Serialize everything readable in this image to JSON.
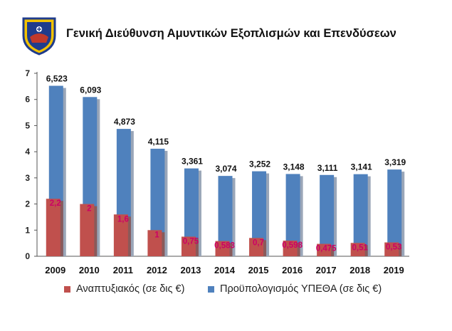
{
  "header": {
    "title": "Γενική Διεύθυνση Αμυντικών Εξοπλισμών και Επενδύσεων",
    "logo_icon": "navy-shield-emblem-icon"
  },
  "colors": {
    "red_series": "#c0504d",
    "blue_series": "#4f81bd",
    "red_label": "#cc0066",
    "grid": "#d0d0d0"
  },
  "chart_data": {
    "type": "bar",
    "categories": [
      "2009",
      "2010",
      "2011",
      "2012",
      "2013",
      "2014",
      "2015",
      "2016",
      "2017",
      "2018",
      "2019"
    ],
    "series": [
      {
        "name": "Αναπτυξιακός (σε δις €)",
        "values": [
          2.2,
          2,
          1.6,
          1,
          0.75,
          0.583,
          0.7,
          0.598,
          0.475,
          0.51,
          0.53
        ],
        "labels": [
          "2,2",
          "2",
          "1,6",
          "1",
          "0,75",
          "0,583",
          "0,7",
          "0,598",
          "0,475",
          "0,51",
          "0,53"
        ]
      },
      {
        "name": "Προϋπολογισμός ΥΠΕΘΑ (σε δις €)",
        "values": [
          6.523,
          6.093,
          4.873,
          4.115,
          3.361,
          3.074,
          3.252,
          3.148,
          3.111,
          3.141,
          3.319
        ],
        "labels": [
          "6,523",
          "6,093",
          "4,873",
          "4,115",
          "3,361",
          "3,074",
          "3,252",
          "3,148",
          "3,111",
          "3,141",
          "3,319"
        ]
      }
    ],
    "yticks": [
      "0",
      "1",
      "2",
      "3",
      "4",
      "5",
      "6",
      "7"
    ],
    "ylim": [
      0,
      7
    ],
    "grid": false,
    "legend_position": "bottom"
  }
}
